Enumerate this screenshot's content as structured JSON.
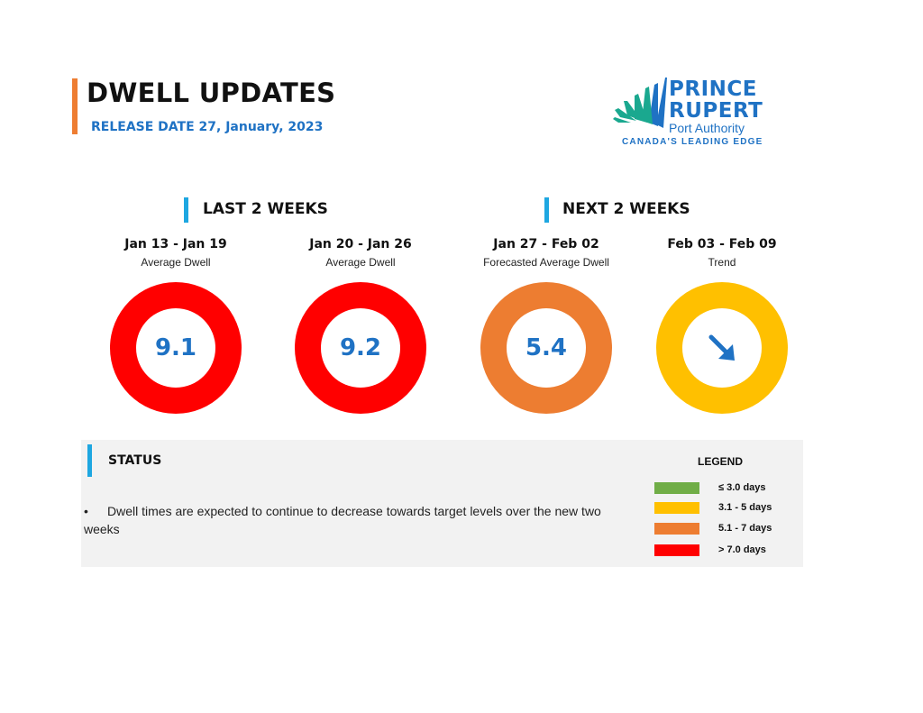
{
  "header": {
    "title": "DWELL UPDATES",
    "release": "RELEASE DATE 27, January, 2023"
  },
  "logo": {
    "line1": "PRINCE",
    "line2": "RUPERT",
    "line3": "Port Authority",
    "tagline": "CANADA'S LEADING EDGE",
    "colors": {
      "teal": "#1aa88f",
      "blue": "#1f72c4"
    }
  },
  "sections": {
    "last": "LAST 2 WEEKS",
    "next": "NEXT 2 WEEKS"
  },
  "periods": [
    {
      "range": "Jan 13 - Jan 19",
      "sub": "Average Dwell",
      "value": "9.1",
      "ring_color": "#ff0000"
    },
    {
      "range": "Jan 20 - Jan 26",
      "sub": "Average Dwell",
      "value": "9.2",
      "ring_color": "#ff0000"
    },
    {
      "range": "Jan 27 - Feb 02",
      "sub": "Forecasted Average Dwell",
      "value": "5.4",
      "ring_color": "#ed7d31"
    },
    {
      "range": "Feb 03 - Feb 09",
      "sub": "Trend",
      "icon": "arrow-down-right-icon",
      "ring_color": "#ffc000"
    }
  ],
  "status": {
    "title": "STATUS",
    "bullet": "•",
    "text": "Dwell times are expected to continue to decrease towards target levels over the new two weeks"
  },
  "legend": {
    "title": "LEGEND",
    "items": [
      {
        "label": "≤ 3.0 days",
        "color": "#70ad47"
      },
      {
        "label": "3.1 - 5 days",
        "color": "#ffc000"
      },
      {
        "label": "5.1 - 7 days",
        "color": "#ed7d31"
      },
      {
        "label": "> 7.0 days",
        "color": "#ff0000"
      }
    ]
  },
  "accent_colors": {
    "orange_bar": "#ee7d32",
    "section_bar": "#1ea7e1",
    "value_blue": "#1f72c4"
  }
}
